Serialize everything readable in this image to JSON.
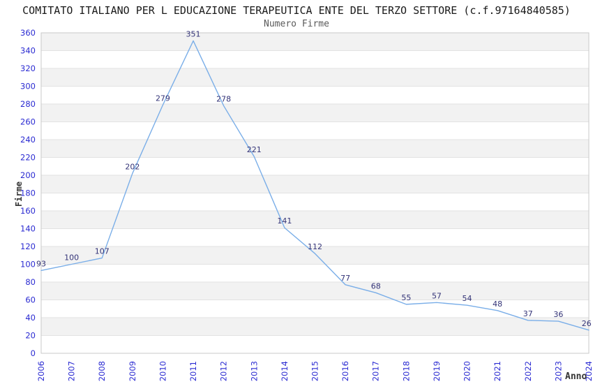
{
  "chart_data": {
    "type": "line",
    "title": "COMITATO ITALIANO PER L EDUCAZIONE TERAPEUTICA ENTE DEL TERZO SETTORE (c.f.97164840585)",
    "subtitle": "Numero Firme",
    "xlabel": "Anno",
    "ylabel": "Firme",
    "categories": [
      "2006",
      "2007",
      "2008",
      "2009",
      "2010",
      "2011",
      "2012",
      "2013",
      "2014",
      "2015",
      "2016",
      "2017",
      "2018",
      "2019",
      "2020",
      "2021",
      "2022",
      "2023",
      "2024"
    ],
    "values": [
      93,
      100,
      107,
      202,
      279,
      351,
      278,
      221,
      141,
      112,
      77,
      68,
      55,
      57,
      54,
      48,
      37,
      36,
      26
    ],
    "ylim": [
      0,
      360
    ],
    "ytick_step": 20,
    "grid": true,
    "banded_background": true,
    "legend_position": "none",
    "point_labels_visible": true,
    "colors": {
      "line": "#7aaee8",
      "data_label": "#333377",
      "tick_label": "#2b2bd2",
      "axis_title": "#333333",
      "title": "#1a1a1a",
      "subtitle": "#5a5a5a",
      "band": "#f2f2f2",
      "gridline": "#e2e2e2",
      "plot_border": "#c9c9c9",
      "background": "#ffffff"
    }
  }
}
